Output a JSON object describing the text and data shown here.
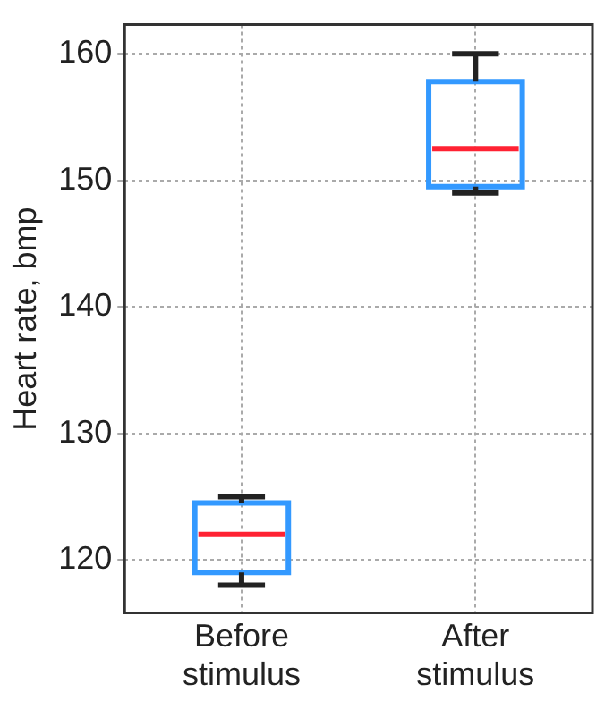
{
  "chart_data": {
    "type": "box",
    "ylabel": "Heart rate, bmp",
    "categories": [
      "Before stimulus",
      "After stimulus"
    ],
    "series": [
      {
        "color": "#3399ff",
        "boxes": [
          {
            "low": 118,
            "q1": 119,
            "median": 122,
            "q3": 124.5,
            "high": 125
          },
          {
            "low": 149,
            "q1": 149.5,
            "median": 152.5,
            "q3": 157.8,
            "high": 160
          }
        ]
      }
    ],
    "ylim": [
      115.8,
      162.3
    ],
    "yticks": [
      120,
      130,
      140,
      150,
      160
    ],
    "grid": true
  }
}
